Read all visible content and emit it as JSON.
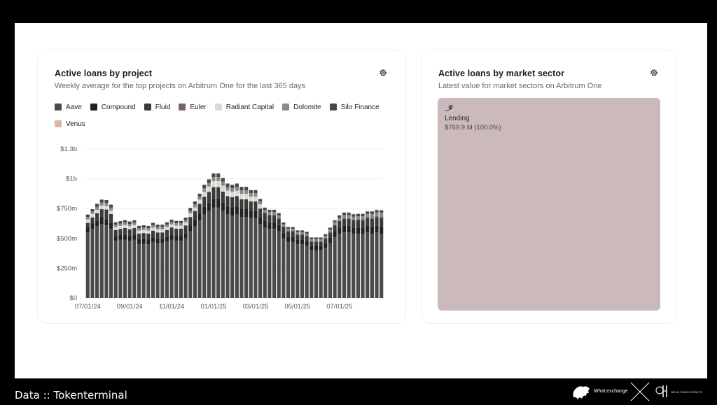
{
  "left_card": {
    "title": "Active loans by project",
    "subtitle": "Weekly average for the top projects on Arbitrum One for the last 365 days",
    "settings_icon": "gear-icon"
  },
  "right_card": {
    "title": "Active loans by market sector",
    "subtitle": "Latest value for market sectors on Arbitrum One",
    "settings_icon": "gear-icon",
    "treemap": {
      "icon": "hand-coins-icon",
      "label": "Lending",
      "value": "$769.9 M (100.0%)",
      "color": "#cbb9bc"
    }
  },
  "footer": {
    "source": "Data :: Tokenterminal",
    "logo1_text": "What.exchange",
    "logo2_text": "HOLD ENDS EVENTS"
  },
  "chart_data": {
    "type": "bar",
    "stacked": true,
    "title": "Active loans by project",
    "x_ticks": [
      "07/01/24",
      "09/01/24",
      "11/01/24",
      "01/01/25",
      "03/01/25",
      "05/01/25",
      "07/01/25"
    ],
    "y_ticks": [
      "$0",
      "$250m",
      "$500m",
      "$750m",
      "$1b",
      "$1.3b"
    ],
    "ylim": [
      0,
      1250
    ],
    "y_unit": "millions USD",
    "grid": true,
    "legend_position": "top",
    "series": [
      {
        "name": "Aave",
        "color": "#4a4a4a",
        "values": [
          550,
          580,
          600,
          620,
          610,
          580,
          480,
          490,
          490,
          480,
          490,
          450,
          455,
          450,
          470,
          460,
          460,
          475,
          490,
          480,
          480,
          500,
          560,
          600,
          650,
          700,
          730,
          760,
          760,
          730,
          700,
          690,
          700,
          680,
          680,
          670,
          670,
          620,
          590,
          580,
          580,
          560,
          500,
          470,
          470,
          450,
          450,
          440,
          400,
          400,
          400,
          420,
          460,
          510,
          540,
          550,
          550,
          540,
          540,
          540,
          550,
          540,
          550,
          540
        ]
      },
      {
        "name": "Compound",
        "color": "#222222",
        "values": [
          40,
          45,
          50,
          55,
          52,
          50,
          40,
          40,
          42,
          42,
          42,
          40,
          40,
          40,
          40,
          40,
          40,
          40,
          42,
          42,
          42,
          44,
          50,
          55,
          60,
          65,
          70,
          75,
          75,
          72,
          70,
          70,
          70,
          68,
          68,
          65,
          65,
          60,
          58,
          55,
          55,
          52,
          48,
          45,
          45,
          42,
          42,
          40,
          38,
          38,
          38,
          40,
          45,
          50,
          52,
          55,
          55,
          52,
          52,
          52,
          55,
          55,
          55,
          55
        ]
      },
      {
        "name": "Fluid",
        "color": "#3a3a3a",
        "values": [
          40,
          50,
          60,
          70,
          80,
          75,
          50,
          50,
          55,
          55,
          55,
          50,
          50,
          50,
          55,
          50,
          50,
          55,
          60,
          60,
          60,
          65,
          70,
          75,
          80,
          85,
          90,
          95,
          95,
          90,
          85,
          85,
          85,
          80,
          80,
          75,
          75,
          70,
          65,
          60,
          60,
          55,
          50,
          45,
          45,
          40,
          40,
          40,
          35,
          35,
          35,
          40,
          45,
          50,
          55,
          60,
          60,
          60,
          60,
          60,
          65,
          70,
          70,
          75
        ]
      },
      {
        "name": "Euler",
        "color": "#7a6563",
        "values": [
          0,
          0,
          0,
          0,
          0,
          0,
          0,
          0,
          0,
          0,
          0,
          0,
          0,
          0,
          0,
          0,
          0,
          0,
          0,
          0,
          0,
          0,
          0,
          0,
          0,
          0,
          0,
          0,
          0,
          0,
          0,
          0,
          0,
          0,
          0,
          0,
          0,
          0,
          0,
          0,
          0,
          0,
          0,
          0,
          0,
          0,
          0,
          0,
          0,
          0,
          0,
          0,
          0,
          0,
          0,
          5,
          5,
          5,
          8,
          8,
          10,
          10,
          12,
          15
        ]
      },
      {
        "name": "Radiant Capital",
        "color": "#ddd8d0",
        "values": [
          30,
          30,
          30,
          30,
          30,
          28,
          25,
          25,
          25,
          25,
          25,
          25,
          25,
          25,
          25,
          25,
          25,
          25,
          25,
          25,
          25,
          25,
          30,
          30,
          35,
          40,
          45,
          50,
          50,
          50,
          45,
          45,
          45,
          45,
          45,
          40,
          40,
          35,
          0,
          0,
          0,
          0,
          0,
          0,
          0,
          0,
          0,
          0,
          0,
          0,
          0,
          0,
          0,
          0,
          0,
          0,
          0,
          0,
          0,
          0,
          0,
          0,
          0,
          0
        ]
      },
      {
        "name": "Dolomite",
        "color": "#8a8a8a",
        "values": [
          20,
          20,
          25,
          25,
          25,
          25,
          20,
          20,
          20,
          20,
          20,
          20,
          20,
          20,
          20,
          20,
          20,
          20,
          20,
          20,
          20,
          20,
          20,
          25,
          25,
          30,
          30,
          35,
          35,
          35,
          30,
          30,
          30,
          30,
          30,
          30,
          30,
          25,
          25,
          25,
          25,
          25,
          20,
          20,
          20,
          20,
          20,
          20,
          20,
          20,
          20,
          20,
          25,
          25,
          25,
          25,
          25,
          25,
          25,
          25,
          25,
          30,
          30,
          30
        ]
      },
      {
        "name": "Silo Finance",
        "color": "#484848",
        "values": [
          20,
          20,
          25,
          25,
          25,
          25,
          20,
          20,
          20,
          20,
          20,
          20,
          20,
          20,
          20,
          20,
          20,
          20,
          20,
          20,
          20,
          20,
          25,
          25,
          25,
          30,
          30,
          30,
          30,
          30,
          30,
          30,
          30,
          30,
          30,
          25,
          25,
          20,
          20,
          20,
          20,
          20,
          15,
          15,
          15,
          15,
          15,
          15,
          15,
          15,
          15,
          15,
          15,
          15,
          20,
          20,
          20,
          20,
          20,
          20,
          20,
          20,
          20,
          20
        ]
      },
      {
        "name": "Venus",
        "color": "#d9b8a3",
        "values": [
          0,
          0,
          0,
          0,
          0,
          0,
          0,
          0,
          0,
          0,
          0,
          0,
          0,
          0,
          0,
          0,
          0,
          0,
          0,
          0,
          0,
          0,
          0,
          0,
          0,
          0,
          0,
          0,
          0,
          0,
          0,
          0,
          0,
          0,
          0,
          0,
          0,
          0,
          0,
          0,
          0,
          0,
          0,
          0,
          0,
          0,
          0,
          0,
          0,
          0,
          0,
          0,
          0,
          5,
          5,
          5,
          5,
          5,
          5,
          5,
          5,
          5,
          5,
          5
        ]
      }
    ]
  }
}
